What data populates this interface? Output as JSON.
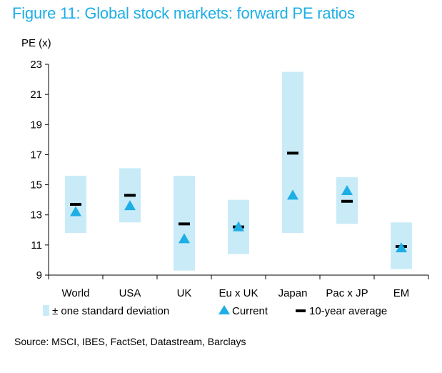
{
  "chart_data": {
    "type": "range-bar",
    "title": "Figure 11: Global stock markets: forward PE ratios",
    "ylabel": "PE (x)",
    "ylim": [
      9,
      23
    ],
    "yticks": [
      9,
      11,
      13,
      15,
      17,
      19,
      21,
      23
    ],
    "categories": [
      "World",
      "USA",
      "UK",
      "Eu x UK",
      "Japan",
      "Pac x JP",
      "EM"
    ],
    "series": [
      {
        "name": "± one standard deviation",
        "low": [
          11.8,
          12.5,
          9.3,
          10.4,
          11.8,
          12.4,
          9.4
        ],
        "high": [
          15.6,
          16.1,
          15.6,
          14.0,
          22.5,
          15.5,
          12.5
        ]
      },
      {
        "name": "Current",
        "values": [
          13.2,
          13.6,
          11.4,
          12.2,
          14.3,
          14.6,
          10.8
        ]
      },
      {
        "name": "10-year average",
        "values": [
          13.7,
          14.3,
          12.4,
          12.2,
          17.1,
          13.9,
          10.9
        ]
      }
    ],
    "colors": {
      "band": "#c9ebf8",
      "marker": "#1eaee6",
      "average": "#000000",
      "title": "#1eaee6"
    },
    "legend_position": "bottom"
  },
  "source": "Source: MSCI, IBES, FactSet, Datastream, Barclays"
}
